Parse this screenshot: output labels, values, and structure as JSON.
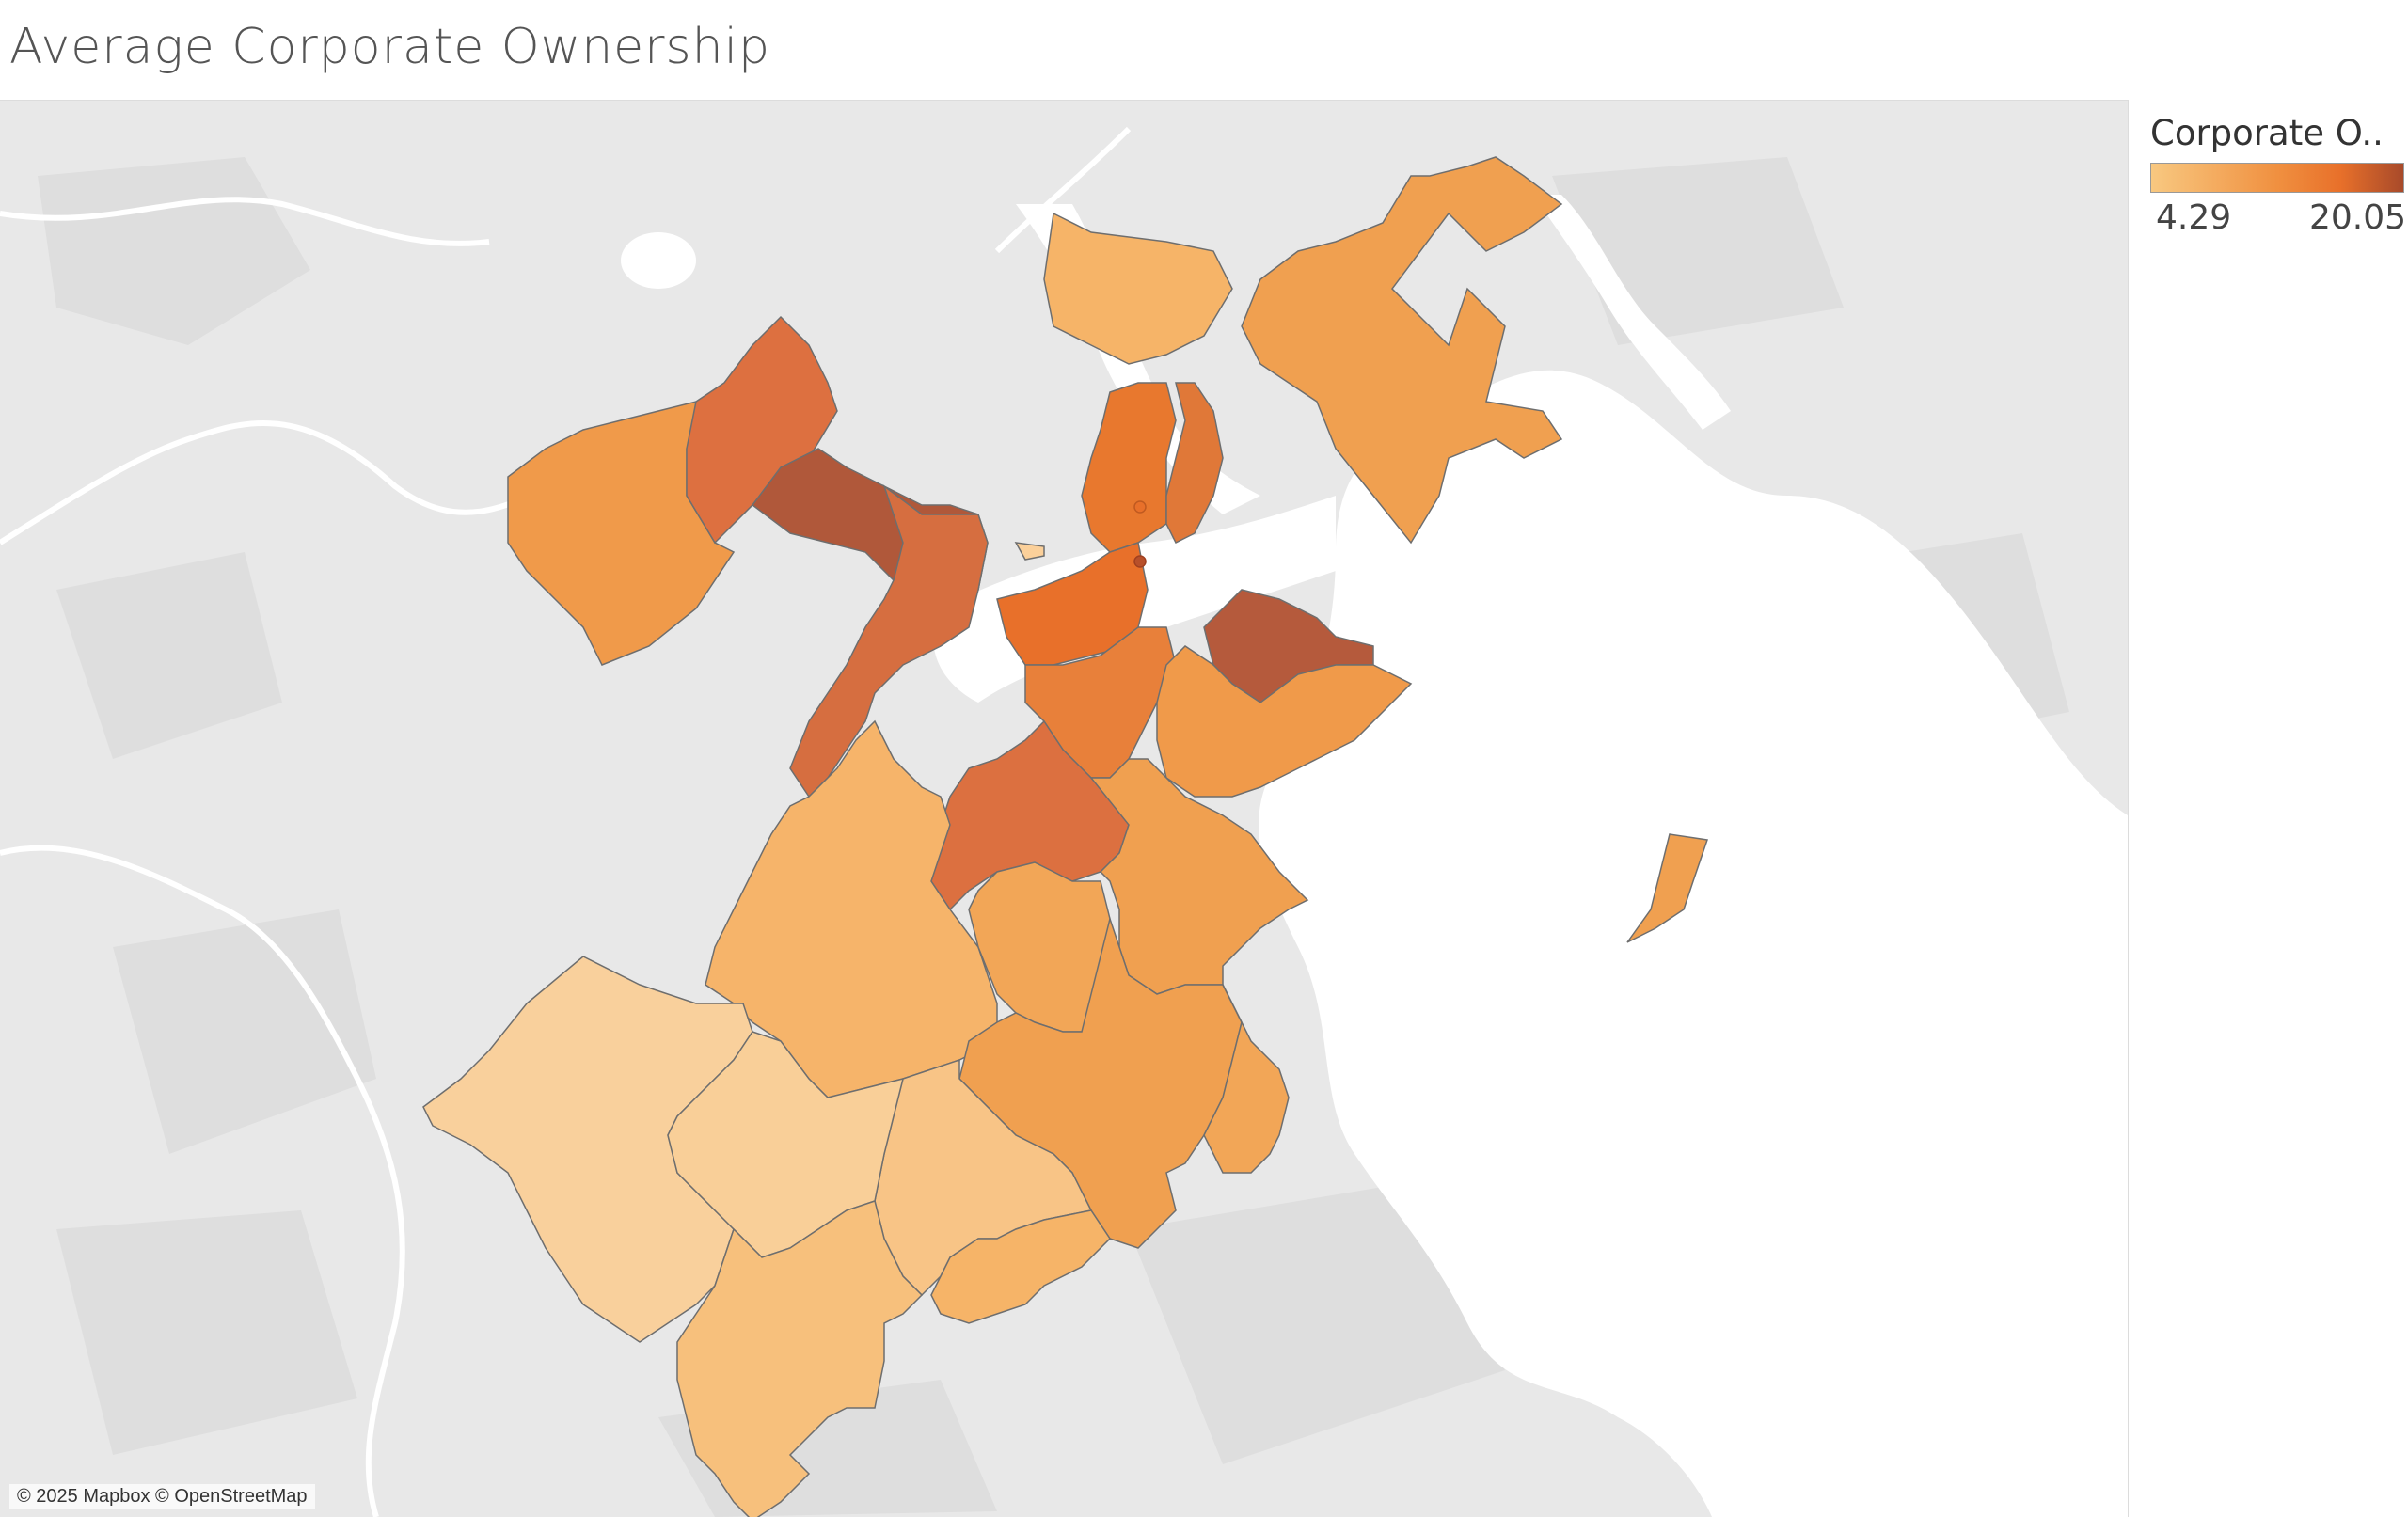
{
  "title": "Average Corporate Ownership",
  "legend": {
    "title": "Corporate O..",
    "min_label": "4.29",
    "max_label": "20.05",
    "min_value": 4.29,
    "max_value": 20.05,
    "colors": [
      "#f8c880",
      "#f09040",
      "#e8702a",
      "#a84a2a"
    ]
  },
  "map": {
    "attribution": "© 2025 Mapbox © OpenStreetMap",
    "land_color": "#e8e8e8",
    "water_color": "#ffffff",
    "border_color": "#6e6e6e"
  }
}
